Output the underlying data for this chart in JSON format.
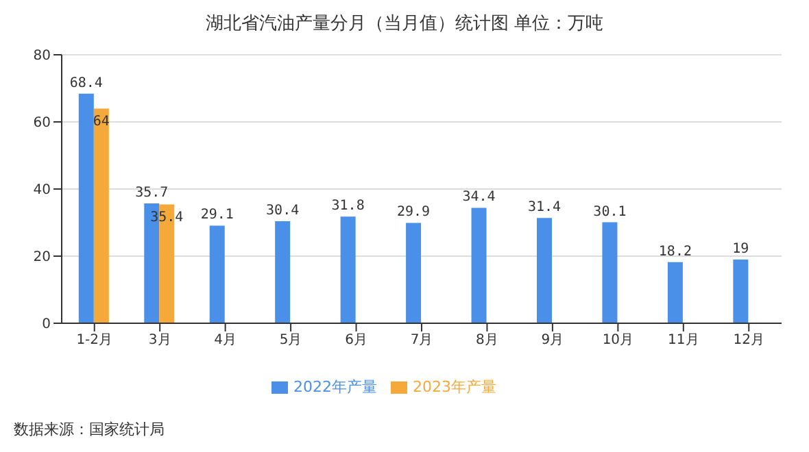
{
  "chart_data": {
    "type": "bar",
    "title": "湖北省汽油产量分月（当月值）统计图 单位：万吨",
    "categories": [
      "1-2月",
      "3月",
      "4月",
      "5月",
      "6月",
      "7月",
      "8月",
      "9月",
      "10月",
      "11月",
      "12月"
    ],
    "series": [
      {
        "name": "2022年产量",
        "color": "#4a8fe8",
        "values": [
          68.4,
          35.7,
          29.1,
          30.4,
          31.8,
          29.9,
          34.4,
          31.4,
          30.1,
          18.2,
          19
        ]
      },
      {
        "name": "2023年产量",
        "color": "#f5a93a",
        "values": [
          64,
          35.4,
          null,
          null,
          null,
          null,
          null,
          null,
          null,
          null,
          null
        ]
      }
    ],
    "ylim": [
      0,
      80
    ],
    "yticks": [
      0,
      20,
      40,
      60,
      80
    ],
    "grid": "y",
    "legend": "bottom",
    "data_labels": true,
    "annotations": [
      "数据来源：国家统计局"
    ]
  }
}
